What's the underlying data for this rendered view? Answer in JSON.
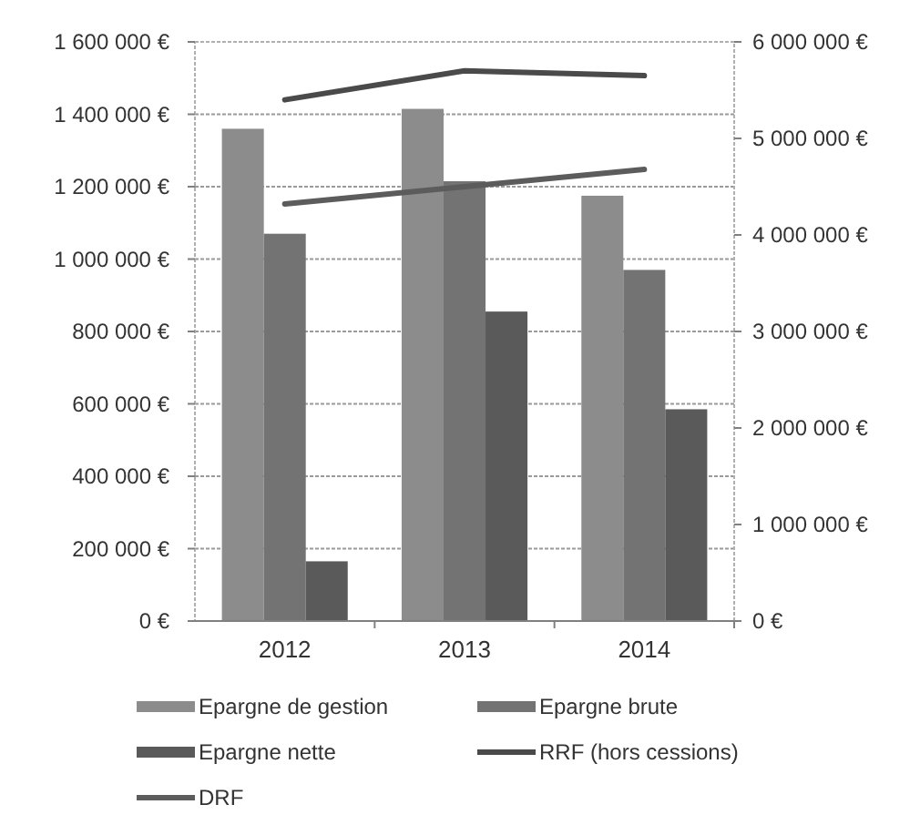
{
  "chart_data": {
    "type": "bar",
    "categories": [
      "2012",
      "2013",
      "2014"
    ],
    "series": [
      {
        "name": "Epargne de gestion",
        "color": "#8c8c8c",
        "values": [
          1360000,
          1415000,
          1175000
        ]
      },
      {
        "name": "Epargne brute",
        "color": "#737373",
        "values": [
          1070000,
          1215000,
          970000
        ]
      },
      {
        "name": "Epargne nette",
        "color": "#5a5a5a",
        "values": [
          165000,
          855000,
          585000
        ]
      },
      {
        "name": "RRF (hors cessions)",
        "type": "line",
        "axis": "y2",
        "color": "#4a4a4a",
        "values": [
          5400000,
          5700000,
          5650000
        ]
      },
      {
        "name": "DRF",
        "type": "line",
        "axis": "y2",
        "color": "#5c5c5c",
        "values": [
          4320000,
          4500000,
          4680000
        ]
      }
    ],
    "ylim": [
      0,
      1600000
    ],
    "yticks": [
      {
        "value": 0,
        "label": "0 €"
      },
      {
        "value": 200000,
        "label": "200 000 €"
      },
      {
        "value": 400000,
        "label": "400 000 €"
      },
      {
        "value": 600000,
        "label": "600 000 €"
      },
      {
        "value": 800000,
        "label": "800 000 €"
      },
      {
        "value": 1000000,
        "label": "1 000 000 €"
      },
      {
        "value": 1200000,
        "label": "1 200 000 €"
      },
      {
        "value": 1400000,
        "label": "1 400 000 €"
      },
      {
        "value": 1600000,
        "label": "1 600 000 €"
      }
    ],
    "y2lim": [
      0,
      6000000
    ],
    "y2ticks": [
      {
        "value": 0,
        "label": "0 €"
      },
      {
        "value": 1000000,
        "label": "1 000 000 €"
      },
      {
        "value": 2000000,
        "label": "2 000 000 €"
      },
      {
        "value": 3000000,
        "label": "3 000 000 €"
      },
      {
        "value": 4000000,
        "label": "4 000 000 €"
      },
      {
        "value": 5000000,
        "label": "5 000 000 €"
      },
      {
        "value": 6000000,
        "label": "6 000 000 €"
      }
    ],
    "grid": "y",
    "legend": "bottom",
    "marker": "none",
    "line_style": "solid"
  }
}
